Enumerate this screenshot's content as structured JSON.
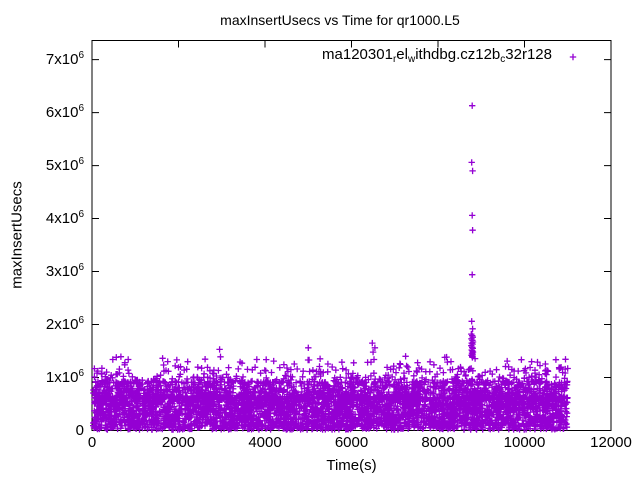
{
  "window": {
    "background": "#ffffff",
    "text_color": "#000000"
  },
  "chart_data": {
    "type": "scatter",
    "title": "maxInsertUsecs vs Time for qr1000.L5",
    "xlabel": "Time(s)",
    "ylabel": "maxInsertUsecs",
    "xlim": [
      0,
      12000
    ],
    "ylim": [
      0,
      7360000
    ],
    "grid": false,
    "legend_position": "top-right-inside",
    "axis_color": "#000000",
    "xticks": [
      {
        "value": 0,
        "label": "0"
      },
      {
        "value": 2000,
        "label": "2000"
      },
      {
        "value": 4000,
        "label": "4000"
      },
      {
        "value": 6000,
        "label": "6000"
      },
      {
        "value": 8000,
        "label": "8000"
      },
      {
        "value": 10000,
        "label": "10000"
      },
      {
        "value": 12000,
        "label": "12000"
      }
    ],
    "yticks": [
      {
        "value": 0,
        "label": "0"
      },
      {
        "value": 1000000,
        "label": "1x10",
        "exp": "6"
      },
      {
        "value": 2000000,
        "label": "2x10",
        "exp": "6"
      },
      {
        "value": 3000000,
        "label": "3x10",
        "exp": "6"
      },
      {
        "value": 4000000,
        "label": "4x10",
        "exp": "6"
      },
      {
        "value": 5000000,
        "label": "5x10",
        "exp": "6"
      },
      {
        "value": 6000000,
        "label": "6x10",
        "exp": "6"
      },
      {
        "value": 7000000,
        "label": "7x10",
        "exp": "6"
      }
    ],
    "series": [
      {
        "name": "ma120301_rel_withdbg.cz12b_c32r128",
        "label_segments": [
          {
            "text": "ma120301"
          },
          {
            "text": "r",
            "subscript": true
          },
          {
            "text": "el"
          },
          {
            "text": "w",
            "subscript": true
          },
          {
            "text": "ithdbg.cz12b"
          },
          {
            "text": "c",
            "subscript": true
          },
          {
            "text": "32r128"
          }
        ],
        "marker": "plus",
        "color": "#9400d3",
        "band": {
          "description": "dense noise band of max-insert latencies across the whole run",
          "time_range": [
            25,
            11000
          ],
          "seed": 1234567,
          "layers": [
            {
              "count": 3200,
              "value_min": 15000,
              "value_max": 640000,
              "skew": 1.0
            },
            {
              "count": 1400,
              "value_min": 600000,
              "value_max": 930000,
              "skew": 1.6
            },
            {
              "count": 380,
              "value_min": 900000,
              "value_max": 1200000,
              "skew": 2.0
            },
            {
              "count": 45,
              "value_min": 1180000,
              "value_max": 1400000,
              "skew": 1.2
            }
          ]
        },
        "notable_points": [
          [
            760,
            1280000
          ],
          [
            1750,
            1300000
          ],
          [
            2950,
            1530000
          ],
          [
            2970,
            1390000
          ],
          [
            3810,
            1340000
          ],
          [
            4200,
            1310000
          ],
          [
            5000,
            1560000
          ],
          [
            5020,
            1330000
          ],
          [
            6450,
            1290000
          ],
          [
            6480,
            1650000
          ],
          [
            6500,
            1480000
          ],
          [
            6520,
            1340000
          ],
          [
            6540,
            1560000
          ],
          [
            7250,
            1400000
          ],
          [
            8300,
            1300000
          ],
          [
            9600,
            1310000
          ],
          [
            10300,
            1290000
          ]
        ],
        "outlier_cluster": {
          "time": 8800,
          "points": [
            [
              8790,
              6130000
            ],
            [
              8780,
              5060000
            ],
            [
              8800,
              4900000
            ],
            [
              8790,
              4060000
            ],
            [
              8800,
              3780000
            ],
            [
              8790,
              2940000
            ],
            [
              8780,
              2060000
            ],
            [
              8800,
              1920000
            ],
            [
              8770,
              1820000
            ],
            [
              8790,
              1790000
            ],
            [
              8805,
              1760000
            ],
            [
              8775,
              1730000
            ],
            [
              8795,
              1700000
            ],
            [
              8810,
              1670000
            ],
            [
              8780,
              1650000
            ],
            [
              8800,
              1630000
            ],
            [
              8770,
              1600000
            ],
            [
              8790,
              1570000
            ],
            [
              8805,
              1550000
            ],
            [
              8780,
              1520000
            ],
            [
              8795,
              1500000
            ],
            [
              8810,
              1480000
            ],
            [
              8785,
              1460000
            ],
            [
              8800,
              1440000
            ],
            [
              8775,
              1420000
            ],
            [
              8790,
              1400000
            ],
            [
              8795,
              1380000
            ]
          ]
        }
      }
    ]
  }
}
